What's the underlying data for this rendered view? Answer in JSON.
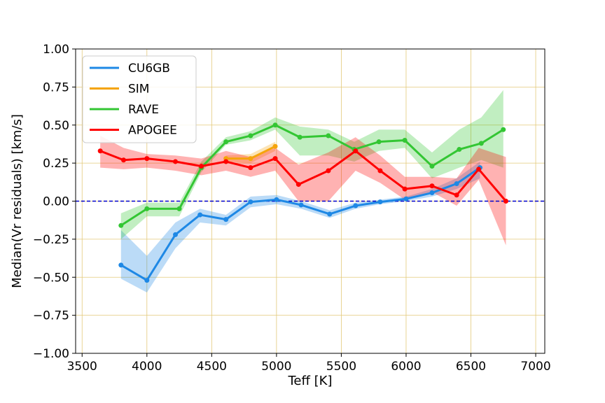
{
  "chart_data": {
    "type": "line",
    "title": "",
    "xlabel": "Teff [K]",
    "ylabel": "Median(Vr residuals) [km/s]",
    "xlim": [
      3450,
      7070
    ],
    "ylim": [
      -1.0,
      1.0
    ],
    "x_ticks": [
      3500,
      4000,
      4500,
      5000,
      5500,
      6000,
      6500,
      7000
    ],
    "x_tick_labels": [
      "3500",
      "4000",
      "4500",
      "5000",
      "5500",
      "6000",
      "6500",
      "7000"
    ],
    "y_ticks": [
      -1.0,
      -0.75,
      -0.5,
      -0.25,
      0.0,
      0.25,
      0.5,
      0.75,
      1.0
    ],
    "y_tick_labels": [
      "−1.00",
      "−0.75",
      "−0.50",
      "−0.25",
      "0.00",
      "0.25",
      "0.50",
      "0.75",
      "1.00"
    ],
    "grid": true,
    "grid_color": "#e3c97a",
    "reference_line": {
      "y": 0.0,
      "color": "#0000cc",
      "style": "dashed"
    },
    "legend_position": "top-left",
    "series": [
      {
        "name": "CU6GB",
        "color": "#1e88e5",
        "x": [
          3800,
          4000,
          4220,
          4410,
          4610,
          4800,
          5000,
          5190,
          5410,
          5610,
          5800,
          6000,
          6200,
          6390,
          6570
        ],
        "y": [
          -0.42,
          -0.52,
          -0.22,
          -0.09,
          -0.12,
          -0.005,
          0.01,
          -0.025,
          -0.085,
          -0.03,
          -0.005,
          0.015,
          0.055,
          0.115,
          0.22
        ],
        "lower": [
          -0.51,
          -0.6,
          -0.31,
          -0.14,
          -0.16,
          -0.04,
          -0.02,
          -0.05,
          -0.11,
          -0.05,
          -0.02,
          0.0,
          0.03,
          0.08,
          0.15
        ],
        "upper": [
          -0.19,
          -0.36,
          -0.14,
          -0.05,
          -0.09,
          0.03,
          0.04,
          0.0,
          -0.06,
          -0.01,
          0.01,
          0.03,
          0.08,
          0.15,
          0.26
        ]
      },
      {
        "name": "SIM",
        "color": "#f5a40c",
        "x": [
          4610,
          4800,
          4990
        ],
        "y": [
          0.28,
          0.28,
          0.36
        ],
        "lower": [
          0.26,
          0.25,
          0.33
        ],
        "upper": [
          0.3,
          0.31,
          0.39
        ]
      },
      {
        "name": "RAVE",
        "color": "#33c633",
        "x": [
          3800,
          4000,
          4250,
          4420,
          4610,
          4800,
          4990,
          5180,
          5400,
          5600,
          5790,
          5990,
          6200,
          6410,
          6580,
          6750
        ],
        "y": [
          -0.16,
          -0.05,
          -0.05,
          0.22,
          0.39,
          0.43,
          0.5,
          0.42,
          0.43,
          0.34,
          0.39,
          0.4,
          0.23,
          0.34,
          0.38,
          0.47
        ],
        "lower": [
          -0.25,
          -0.1,
          -0.1,
          0.19,
          0.37,
          0.4,
          0.47,
          0.3,
          0.3,
          0.26,
          0.33,
          0.35,
          0.15,
          0.22,
          0.27,
          0.22
        ],
        "upper": [
          -0.08,
          -0.01,
          -0.01,
          0.26,
          0.42,
          0.46,
          0.55,
          0.49,
          0.47,
          0.39,
          0.47,
          0.47,
          0.32,
          0.47,
          0.55,
          0.73
        ]
      },
      {
        "name": "APOGEE",
        "color": "#ff0000",
        "x": [
          3640,
          3820,
          4000,
          4220,
          4420,
          4610,
          4800,
          4990,
          5170,
          5400,
          5610,
          5800,
          5990,
          6200,
          6390,
          6560,
          6770
        ],
        "y": [
          0.33,
          0.27,
          0.28,
          0.26,
          0.23,
          0.26,
          0.22,
          0.28,
          0.11,
          0.2,
          0.33,
          0.2,
          0.08,
          0.1,
          0.04,
          0.21,
          0.0
        ],
        "lower": [
          0.22,
          0.21,
          0.22,
          0.2,
          0.17,
          0.2,
          0.16,
          0.2,
          0.0,
          0.0,
          0.2,
          0.12,
          0.01,
          0.06,
          -0.03,
          0.14,
          -0.29
        ],
        "upper": [
          0.43,
          0.35,
          0.31,
          0.3,
          0.28,
          0.33,
          0.29,
          0.35,
          0.24,
          0.32,
          0.42,
          0.3,
          0.16,
          0.16,
          0.15,
          0.35,
          0.29
        ]
      }
    ]
  }
}
